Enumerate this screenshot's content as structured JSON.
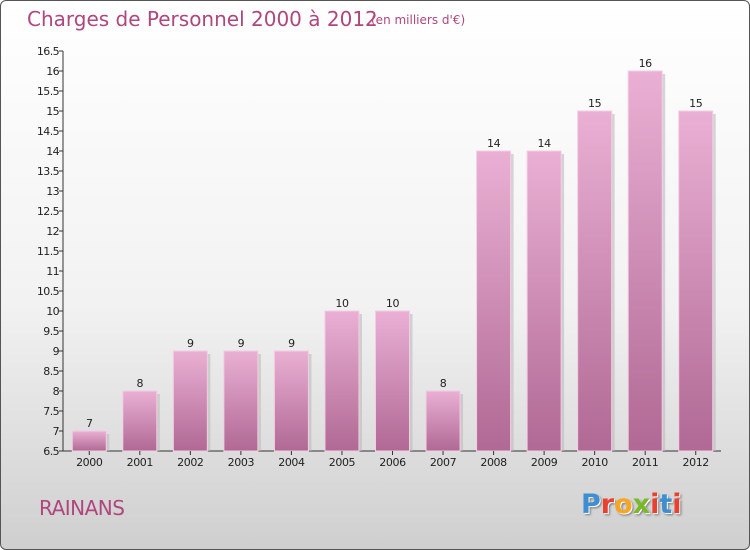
{
  "header": {
    "title": "Charges de Personnel 2000 à 2012",
    "subtitle": "(en milliers d'€)"
  },
  "footer": {
    "commune": "RAINANS",
    "logo_text": "Proxiti"
  },
  "colors": {
    "title": "#b0467e",
    "bar_light": "#eab0d4",
    "bar_dark": "#b06994",
    "logo_letters": [
      "#3d8fd1",
      "#e8422f",
      "#f5a623",
      "#7ab828",
      "#e8422f",
      "#3d8fd1",
      "#e8422f"
    ]
  },
  "chart_data": {
    "type": "bar",
    "title": "Charges de Personnel 2000 à 2012",
    "subtitle": "(en milliers d'€)",
    "xlabel": "",
    "ylabel": "",
    "categories": [
      "2000",
      "2001",
      "2002",
      "2003",
      "2004",
      "2005",
      "2006",
      "2007",
      "2008",
      "2009",
      "2010",
      "2011",
      "2012"
    ],
    "values": [
      7,
      8,
      9,
      9,
      9,
      10,
      10,
      8,
      14,
      14,
      15,
      16,
      15
    ],
    "data_labels": [
      "7",
      "8",
      "9",
      "9",
      "9",
      "10",
      "10",
      "8",
      "14",
      "14",
      "15",
      "16",
      "15"
    ],
    "ylim": [
      6.5,
      16.5
    ],
    "yticks": [
      "6.5",
      "7",
      "7.5",
      "8",
      "8.5",
      "9",
      "9.5",
      "10",
      "10.5",
      "11",
      "11.5",
      "12",
      "12.5",
      "13",
      "13.5",
      "14",
      "14.5",
      "15",
      "15.5",
      "16",
      "16.5"
    ],
    "grid": false,
    "legend": "none"
  }
}
